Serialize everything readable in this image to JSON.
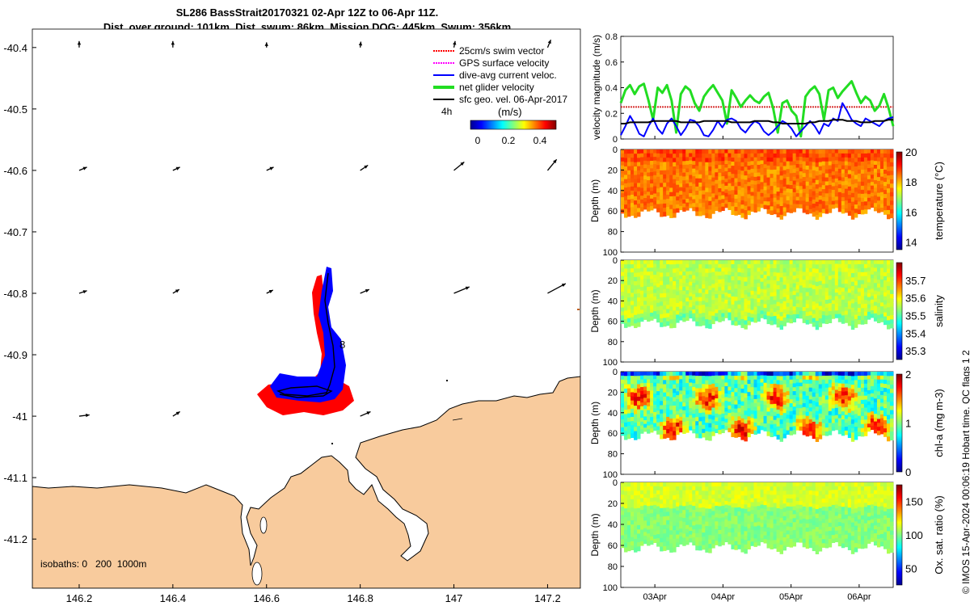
{
  "title_line1": "SL286 BassStrait20170321 02-Apr 12Z to 06-Apr 11Z.",
  "title_line2": "Dist. over ground: 101km. Dist. swum: 86km. Mission DOG: 445km. Swum: 356km",
  "credit": "© IMOS 15-Apr-2024 00:06:19 Hobart time. QC flags 1  2",
  "colors": {
    "land": "#f8cb9d",
    "red": "#ff0000",
    "blue": "#0000ff",
    "green": "#22dd22",
    "magenta": "#ff00ff",
    "black": "#000000",
    "swimref": "#d63030"
  },
  "chart_data": [
    {
      "type": "map",
      "x_ticks": [
        "146.2",
        "146.4",
        "146.6",
        "146.8",
        "147",
        "147.2"
      ],
      "y_ticks": [
        "-40.4",
        "-40.5",
        "-40.6",
        "-40.7",
        "-40.8",
        "-40.9",
        "-41",
        "-41.1",
        "-41.2"
      ],
      "xlim": [
        146.1,
        147.27
      ],
      "ylim": [
        -41.28,
        -40.37
      ],
      "legend": [
        {
          "label": "25cm/s swim vector",
          "color": "red",
          "style": "dotted"
        },
        {
          "label": "GPS surface velocity",
          "color": "magenta",
          "style": "dotted"
        },
        {
          "label": "dive-avg current veloc.",
          "color": "blue",
          "style": "solid"
        },
        {
          "label": "net glider velocity",
          "color": "green",
          "style": "solid"
        },
        {
          "label": "sfc geo. vel. 06-Apr-2017",
          "color": "black",
          "style": "solid"
        }
      ],
      "colorbar": {
        "label": "(m/s)",
        "ticks": [
          "0",
          "0.2",
          "0.4"
        ],
        "range": [
          0,
          0.55
        ]
      },
      "time_step_label": "4h",
      "track_end_label": "8",
      "isobaths_label": "isobaths: 0   200  1000m",
      "current_vectors": [
        {
          "lon": 146.2,
          "lat": -40.4,
          "u": 0.0,
          "v": 0.1
        },
        {
          "lon": 146.4,
          "lat": -40.4,
          "u": 0.0,
          "v": 0.1
        },
        {
          "lon": 146.6,
          "lat": -40.4,
          "u": 0.0,
          "v": 0.08
        },
        {
          "lon": 146.8,
          "lat": -40.4,
          "u": 0.01,
          "v": 0.09
        },
        {
          "lon": 147.0,
          "lat": -40.4,
          "u": 0.02,
          "v": 0.1
        },
        {
          "lon": 147.2,
          "lat": -40.4,
          "u": 0.05,
          "v": 0.12
        },
        {
          "lon": 146.2,
          "lat": -40.6,
          "u": 0.12,
          "v": 0.05
        },
        {
          "lon": 146.4,
          "lat": -40.6,
          "u": 0.11,
          "v": 0.05
        },
        {
          "lon": 146.6,
          "lat": -40.6,
          "u": 0.11,
          "v": 0.05
        },
        {
          "lon": 146.8,
          "lat": -40.6,
          "u": 0.12,
          "v": 0.08
        },
        {
          "lon": 147.0,
          "lat": -40.6,
          "u": 0.16,
          "v": 0.13
        },
        {
          "lon": 147.2,
          "lat": -40.6,
          "u": 0.14,
          "v": 0.17
        },
        {
          "lon": 146.2,
          "lat": -40.8,
          "u": 0.12,
          "v": 0.04
        },
        {
          "lon": 146.4,
          "lat": -40.8,
          "u": 0.1,
          "v": 0.06
        },
        {
          "lon": 146.6,
          "lat": -40.8,
          "u": 0.1,
          "v": 0.05
        },
        {
          "lon": 146.8,
          "lat": -40.8,
          "u": 0.14,
          "v": 0.06
        },
        {
          "lon": 147.0,
          "lat": -40.8,
          "u": 0.24,
          "v": 0.1
        },
        {
          "lon": 147.2,
          "lat": -40.8,
          "u": 0.28,
          "v": 0.15
        },
        {
          "lon": 146.2,
          "lat": -41.0,
          "u": 0.16,
          "v": 0.02
        },
        {
          "lon": 146.4,
          "lat": -41.0,
          "u": 0.11,
          "v": 0.07
        },
        {
          "lon": 146.8,
          "lat": -41.0,
          "u": 0.16,
          "v": 0.07
        }
      ]
    },
    {
      "type": "line",
      "ylabel": "velocity magnitude (m/s)",
      "ylim": [
        0,
        0.8
      ],
      "yticks": [
        "0",
        "0.2",
        "0.4",
        "0.6",
        "0.8"
      ],
      "swim_reference": 0.25,
      "series": [
        {
          "name": "net glider velocity",
          "color": "green",
          "values": [
            0.28,
            0.38,
            0.42,
            0.35,
            0.41,
            0.43,
            0.3,
            0.15,
            0.4,
            0.36,
            0.42,
            0.3,
            0.05,
            0.35,
            0.41,
            0.38,
            0.28,
            0.22,
            0.33,
            0.38,
            0.42,
            0.36,
            0.3,
            0.12,
            0.38,
            0.32,
            0.25,
            0.3,
            0.34,
            0.3,
            0.28,
            0.33,
            0.36,
            0.24,
            0.05,
            0.28,
            0.3,
            0.22,
            0.18,
            0.02,
            0.33,
            0.38,
            0.41,
            0.35,
            0.15,
            0.38,
            0.4,
            0.32,
            0.37,
            0.41,
            0.45,
            0.36,
            0.28,
            0.33,
            0.3,
            0.22,
            0.26,
            0.35,
            0.24,
            0.1
          ]
        },
        {
          "name": "dive-avg current veloc.",
          "color": "blue",
          "values": [
            0.03,
            0.1,
            0.18,
            0.12,
            0.04,
            0.02,
            0.1,
            0.16,
            0.08,
            0.04,
            0.12,
            0.16,
            0.1,
            0.03,
            0.08,
            0.15,
            0.14,
            0.1,
            0.03,
            0.02,
            0.07,
            0.14,
            0.09,
            0.15,
            0.16,
            0.14,
            0.08,
            0.05,
            0.1,
            0.14,
            0.12,
            0.06,
            0.03,
            0.06,
            0.1,
            0.14,
            0.12,
            0.08,
            0.02,
            0.06,
            0.1,
            0.14,
            0.1,
            0.04,
            0.12,
            0.1,
            0.16,
            0.14,
            0.28,
            0.22,
            0.15,
            0.12,
            0.1,
            0.16,
            0.14,
            0.12,
            0.1,
            0.14,
            0.16,
            0.17
          ]
        },
        {
          "name": "sfc geo. vel.",
          "color": "black",
          "values": [
            0.12,
            0.12,
            0.13,
            0.13,
            0.13,
            0.13,
            0.13,
            0.14,
            0.14,
            0.14,
            0.14,
            0.14,
            0.14,
            0.13,
            0.13,
            0.13,
            0.13,
            0.13,
            0.14,
            0.14,
            0.14,
            0.14,
            0.14,
            0.14,
            0.13,
            0.13,
            0.13,
            0.13,
            0.13,
            0.14,
            0.14,
            0.14,
            0.14,
            0.13,
            0.13,
            0.12,
            0.12,
            0.12,
            0.12,
            0.12,
            0.12,
            0.13,
            0.13,
            0.14,
            0.14,
            0.14,
            0.15,
            0.15,
            0.15,
            0.14,
            0.14,
            0.14,
            0.13,
            0.13,
            0.13,
            0.14,
            0.14,
            0.14,
            0.15,
            0.15
          ]
        }
      ]
    },
    {
      "type": "heatmap",
      "variable": "temperature (°C)",
      "ylabel": "Depth (m)",
      "depth_range": [
        0,
        100
      ],
      "depth_ticks": [
        "0",
        "20",
        "40",
        "60",
        "80",
        "100"
      ],
      "clim": [
        13.5,
        20
      ],
      "colorbar_ticks": [
        "14",
        "16",
        "18",
        "20"
      ],
      "typical_value": 18.4
    },
    {
      "type": "heatmap",
      "variable": "salinity",
      "ylabel": "Depth (m)",
      "depth_range": [
        0,
        100
      ],
      "depth_ticks": [
        "0",
        "20",
        "40",
        "60",
        "80",
        "100"
      ],
      "clim": [
        35.25,
        35.8
      ],
      "colorbar_ticks": [
        "35.3",
        "35.4",
        "35.5",
        "35.6",
        "35.7"
      ],
      "typical_value": 35.56
    },
    {
      "type": "heatmap",
      "variable": "chl-a (mg m-3)",
      "ylabel": "Depth (m)",
      "depth_range": [
        0,
        100
      ],
      "depth_ticks": [
        "0",
        "20",
        "40",
        "60",
        "80",
        "100"
      ],
      "clim": [
        0,
        2
      ],
      "colorbar_ticks": [
        "0",
        "1",
        "2"
      ],
      "typical_value": 0.9
    },
    {
      "type": "heatmap",
      "variable": "Ox. sat. ratio (%)",
      "ylabel": "Depth (m)",
      "depth_range": [
        0,
        100
      ],
      "depth_ticks": [
        "0",
        "20",
        "40",
        "60",
        "80",
        "100"
      ],
      "clim": [
        25,
        175
      ],
      "colorbar_ticks": [
        "50",
        "100",
        "150"
      ],
      "typical_value": 105,
      "x_ticks": [
        "03Apr",
        "04Apr",
        "05Apr",
        "06Apr"
      ]
    }
  ]
}
